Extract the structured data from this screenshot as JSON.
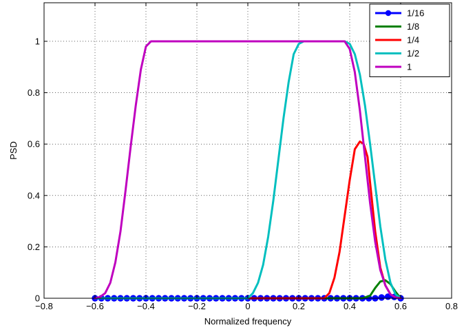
{
  "chart_data": {
    "type": "line",
    "title": "",
    "xlabel": "Normalized frequency",
    "ylabel": "PSD",
    "xlim": [
      -0.8,
      0.8
    ],
    "ylim": [
      0,
      1.15
    ],
    "xticks": [
      -0.8,
      -0.6,
      -0.4,
      -0.2,
      0,
      0.2,
      0.4,
      0.6,
      0.8
    ],
    "xtick_labels": [
      "−0.8",
      "−0.6",
      "−0.4",
      "−0.2",
      "0",
      "0.2",
      "0.4",
      "0.6",
      "0.8"
    ],
    "yticks": [
      0,
      0.2,
      0.4,
      0.6,
      0.8,
      1
    ],
    "ytick_labels": [
      "0",
      "0.2",
      "0.4",
      "0.6",
      "0.8",
      "1"
    ],
    "grid": true,
    "legend_position": "top-right",
    "series": [
      {
        "name": "1/16",
        "color": "#0000ff",
        "marker": "circle",
        "x": [
          -0.6,
          -0.575,
          -0.55,
          -0.525,
          -0.5,
          -0.475,
          -0.45,
          -0.425,
          -0.4,
          -0.375,
          -0.35,
          -0.325,
          -0.3,
          -0.275,
          -0.25,
          -0.225,
          -0.2,
          -0.175,
          -0.15,
          -0.125,
          -0.1,
          -0.075,
          -0.05,
          -0.025,
          0,
          0.025,
          0.05,
          0.075,
          0.1,
          0.125,
          0.15,
          0.175,
          0.2,
          0.225,
          0.25,
          0.275,
          0.3,
          0.325,
          0.35,
          0.375,
          0.4,
          0.425,
          0.45,
          0.475,
          0.5,
          0.525,
          0.55,
          0.575,
          0.6
        ],
        "y": [
          0,
          0,
          0,
          0,
          0,
          0,
          0,
          0,
          0,
          0,
          0,
          0,
          0,
          0,
          0,
          0,
          0,
          0,
          0,
          0,
          0,
          0,
          0,
          0,
          0,
          0,
          0,
          0,
          0,
          0,
          0,
          0,
          0,
          0,
          0,
          0,
          0,
          0,
          0,
          0,
          0,
          0,
          0,
          0,
          0,
          0.003,
          0.006,
          0.005,
          0
        ]
      },
      {
        "name": "1/8",
        "color": "#008000",
        "marker": "none",
        "x": [
          -0.6,
          0.45,
          0.48,
          0.5,
          0.52,
          0.54,
          0.56,
          0.58,
          0.6
        ],
        "y": [
          0,
          0,
          0.01,
          0.04,
          0.065,
          0.07,
          0.055,
          0.025,
          0
        ]
      },
      {
        "name": "1/4",
        "color": "#ff0000",
        "marker": "none",
        "x": [
          -0.6,
          0.3,
          0.32,
          0.34,
          0.36,
          0.38,
          0.4,
          0.42,
          0.44,
          0.455,
          0.47,
          0.48,
          0.5,
          0.52,
          0.54,
          0.56,
          0.58,
          0.6
        ],
        "y": [
          0,
          0,
          0.02,
          0.08,
          0.18,
          0.32,
          0.46,
          0.58,
          0.61,
          0.6,
          0.55,
          0.45,
          0.26,
          0.12,
          0.05,
          0.015,
          0.003,
          0
        ]
      },
      {
        "name": "1/2",
        "color": "#00bfbf",
        "marker": "none",
        "x": [
          -0.6,
          0,
          0.02,
          0.04,
          0.06,
          0.08,
          0.1,
          0.12,
          0.14,
          0.16,
          0.18,
          0.2,
          0.22,
          0.38,
          0.4,
          0.42,
          0.44,
          0.46,
          0.48,
          0.5,
          0.52,
          0.54,
          0.56,
          0.58,
          0.6
        ],
        "y": [
          0,
          0,
          0.02,
          0.06,
          0.13,
          0.24,
          0.38,
          0.54,
          0.7,
          0.84,
          0.95,
          0.99,
          1,
          1,
          0.99,
          0.95,
          0.87,
          0.75,
          0.6,
          0.44,
          0.28,
          0.15,
          0.06,
          0.015,
          0
        ]
      },
      {
        "name": "1",
        "color": "#bf00bf",
        "marker": "none",
        "x": [
          -0.6,
          -0.58,
          -0.56,
          -0.54,
          -0.52,
          -0.5,
          -0.48,
          -0.46,
          -0.44,
          -0.42,
          -0.4,
          -0.38,
          0.38,
          0.4,
          0.42,
          0.44,
          0.46,
          0.48,
          0.5,
          0.52,
          0.54,
          0.56,
          0.58,
          0.6
        ],
        "y": [
          0,
          0.005,
          0.02,
          0.06,
          0.14,
          0.26,
          0.42,
          0.59,
          0.75,
          0.89,
          0.98,
          1,
          1,
          0.97,
          0.88,
          0.73,
          0.55,
          0.37,
          0.22,
          0.11,
          0.05,
          0.015,
          0.003,
          0
        ]
      }
    ]
  }
}
